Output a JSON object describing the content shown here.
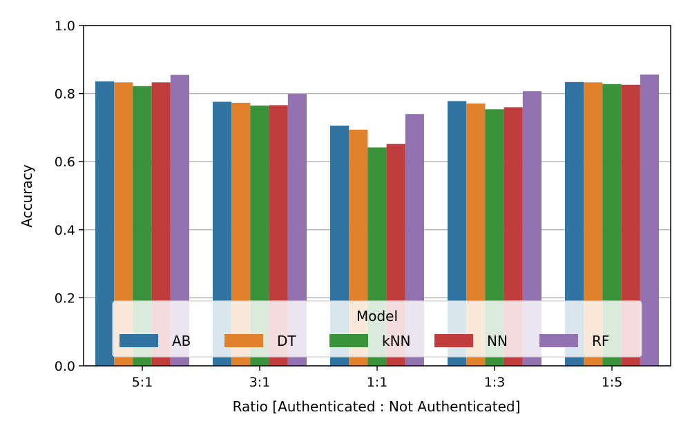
{
  "chart_data": {
    "type": "bar",
    "categories": [
      "5:1",
      "3:1",
      "1:1",
      "1:3",
      "1:5"
    ],
    "series": [
      {
        "name": "AB",
        "color": "#3274a1",
        "values": [
          0.836,
          0.776,
          0.706,
          0.778,
          0.834
        ]
      },
      {
        "name": "DT",
        "color": "#e1812c",
        "values": [
          0.833,
          0.773,
          0.694,
          0.771,
          0.833
        ]
      },
      {
        "name": "kNN",
        "color": "#3a923a",
        "values": [
          0.822,
          0.765,
          0.642,
          0.754,
          0.828
        ]
      },
      {
        "name": "NN",
        "color": "#c03d3e",
        "values": [
          0.833,
          0.766,
          0.652,
          0.76,
          0.826
        ]
      },
      {
        "name": "RF",
        "color": "#9372b2",
        "values": [
          0.855,
          0.799,
          0.74,
          0.807,
          0.856
        ]
      }
    ],
    "xlabel": "Ratio [Authenticated : Not Authenticated]",
    "ylabel": "Accuracy",
    "ylim": [
      0,
      1.0
    ],
    "yticks": [
      "0.0",
      "0.2",
      "0.4",
      "0.6",
      "0.8",
      "1.0"
    ],
    "grid": true,
    "legend": {
      "title": "Model",
      "placement": "lower-center"
    }
  }
}
